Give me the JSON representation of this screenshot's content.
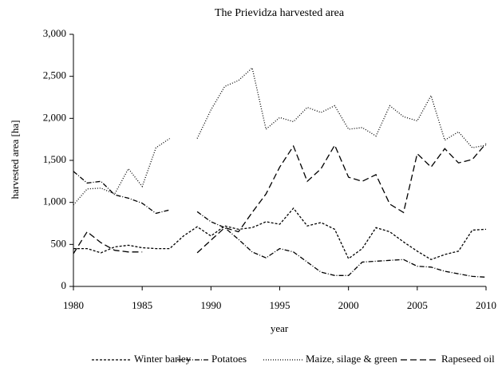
{
  "chart_data": {
    "type": "line",
    "title": "The Prievidza harvested area",
    "x_label": "year",
    "y_label": "harvested area [ha]",
    "x": [
      1980,
      1981,
      1982,
      1983,
      1984,
      1985,
      1986,
      1987,
      1988,
      1989,
      1990,
      1991,
      1992,
      1993,
      1994,
      1995,
      1996,
      1997,
      1998,
      1999,
      2000,
      2001,
      2002,
      2003,
      2004,
      2005,
      2006,
      2007,
      2008,
      2009,
      2010
    ],
    "series": [
      {
        "name": "Winter barley",
        "color": "#000000",
        "values": [
          450,
          450,
          400,
          470,
          490,
          460,
          450,
          450,
          600,
          710,
          600,
          720,
          680,
          700,
          770,
          740,
          930,
          720,
          760,
          680,
          330,
          450,
          700,
          650,
          530,
          420,
          320,
          380,
          420,
          670,
          680
        ]
      },
      {
        "name": "Potatoes",
        "color": "#000000",
        "values": [
          1370,
          1230,
          1250,
          1090,
          1050,
          990,
          870,
          910,
          null,
          890,
          770,
          700,
          560,
          410,
          340,
          450,
          410,
          290,
          170,
          130,
          130,
          290,
          300,
          310,
          320,
          240,
          230,
          180,
          150,
          120,
          110
        ]
      },
      {
        "name": "Maize, silage & green",
        "color": "#000000",
        "values": [
          970,
          1160,
          1170,
          1100,
          1400,
          1190,
          1650,
          1760,
          null,
          1760,
          2100,
          2380,
          2450,
          2600,
          1870,
          2010,
          1960,
          2130,
          2070,
          2150,
          1870,
          1890,
          1790,
          2150,
          2020,
          1970,
          2270,
          1740,
          1840,
          1650,
          1680
        ]
      },
      {
        "name": "Rapeseed oil",
        "color": "#000000",
        "values": [
          390,
          650,
          520,
          430,
          410,
          410,
          null,
          null,
          null,
          400,
          550,
          700,
          650,
          880,
          1100,
          1420,
          1670,
          1250,
          1400,
          1680,
          1300,
          1250,
          1330,
          980,
          880,
          1580,
          1420,
          1640,
          1470,
          1510,
          1700
        ]
      }
    ],
    "xlim": [
      1980,
      2010
    ],
    "xticks": [
      1980,
      1985,
      1990,
      1995,
      2000,
      2005,
      2010
    ],
    "ylim": [
      0,
      3000
    ],
    "yticks": [
      0,
      500,
      {
        "value": 1000,
        "label": "1,000"
      },
      {
        "value": 1500,
        "label": "1,500"
      },
      {
        "value": 2000,
        "label": "2,000"
      },
      {
        "value": 2500,
        "label": "2,500"
      },
      {
        "value": 3000,
        "label": "3,000"
      }
    ],
    "grid": false,
    "legend": "bottom"
  }
}
